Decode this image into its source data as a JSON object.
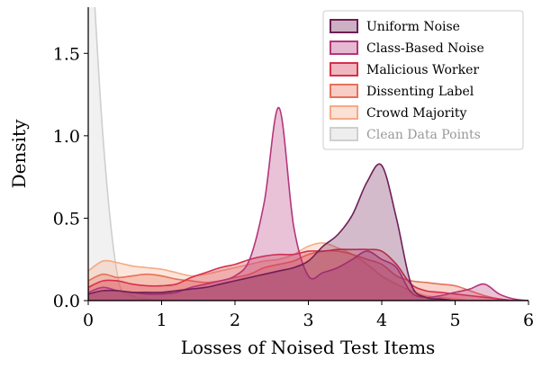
{
  "chart_data": {
    "type": "area",
    "xlabel": "Losses of Noised Test Items",
    "ylabel": "Density",
    "x": [
      0,
      0.2,
      0.4,
      0.6,
      0.8,
      1.0,
      1.2,
      1.4,
      1.6,
      1.8,
      2.0,
      2.2,
      2.4,
      2.6,
      2.8,
      3.0,
      3.2,
      3.4,
      3.6,
      3.8,
      4.0,
      4.2,
      4.4,
      4.6,
      4.8,
      5.0,
      5.2,
      5.4,
      5.6,
      5.8,
      6.0
    ],
    "series": [
      {
        "name": "Uniform Noise",
        "color": "#6e1f57",
        "values": [
          0.04,
          0.06,
          0.06,
          0.05,
          0.05,
          0.05,
          0.06,
          0.07,
          0.08,
          0.1,
          0.12,
          0.14,
          0.16,
          0.18,
          0.2,
          0.24,
          0.33,
          0.4,
          0.52,
          0.72,
          0.82,
          0.5,
          0.1,
          0.02,
          0.01,
          0,
          0,
          0,
          0,
          0,
          0
        ]
      },
      {
        "name": "Class-Based Noise",
        "color": "#b5367a",
        "values": [
          0.05,
          0.08,
          0.06,
          0.05,
          0.04,
          0.04,
          0.05,
          0.08,
          0.1,
          0.12,
          0.15,
          0.25,
          0.6,
          1.17,
          0.45,
          0.15,
          0.17,
          0.2,
          0.25,
          0.3,
          0.25,
          0.2,
          0.05,
          0.02,
          0.03,
          0.05,
          0.07,
          0.1,
          0.04,
          0.01,
          0
        ]
      },
      {
        "name": "Malicious Worker",
        "color": "#d6304a",
        "values": [
          0.08,
          0.12,
          0.12,
          0.1,
          0.09,
          0.09,
          0.1,
          0.14,
          0.17,
          0.2,
          0.22,
          0.25,
          0.27,
          0.28,
          0.28,
          0.3,
          0.3,
          0.31,
          0.31,
          0.31,
          0.3,
          0.22,
          0.1,
          0.06,
          0.05,
          0.04,
          0.03,
          0.02,
          0.01,
          0,
          0
        ]
      },
      {
        "name": "Dissenting Label",
        "color": "#e8705a",
        "values": [
          0.12,
          0.16,
          0.14,
          0.15,
          0.16,
          0.15,
          0.13,
          0.12,
          0.11,
          0.12,
          0.14,
          0.16,
          0.2,
          0.22,
          0.24,
          0.28,
          0.3,
          0.3,
          0.28,
          0.25,
          0.22,
          0.15,
          0.12,
          0.11,
          0.1,
          0.09,
          0.06,
          0.03,
          0.01,
          0,
          0
        ]
      },
      {
        "name": "Crowd Majority",
        "color": "#f4aa85",
        "values": [
          0.18,
          0.24,
          0.23,
          0.21,
          0.2,
          0.19,
          0.17,
          0.15,
          0.16,
          0.18,
          0.2,
          0.22,
          0.24,
          0.25,
          0.28,
          0.33,
          0.35,
          0.32,
          0.28,
          0.22,
          0.15,
          0.1,
          0.06,
          0.03,
          0.02,
          0.01,
          0,
          0,
          0,
          0,
          0
        ]
      },
      {
        "name": "Clean Data Points",
        "color": "#cfcfcf",
        "values": [
          2.5,
          1.0,
          0.15,
          0.03,
          0.01,
          0,
          0,
          0,
          0,
          0,
          0,
          0,
          0,
          0,
          0,
          0,
          0,
          0,
          0,
          0,
          0,
          0,
          0,
          0,
          0,
          0,
          0,
          0,
          0,
          0,
          0
        ]
      }
    ],
    "xlim": [
      0,
      6
    ],
    "xticks": [
      0,
      1,
      2,
      3,
      4,
      5,
      6
    ],
    "ylim": [
      0,
      1.78
    ],
    "yticks": [
      {
        "value": 0,
        "label": "0.0"
      },
      0.5,
      {
        "value": 1,
        "label": "1.0"
      },
      1.5
    ],
    "grid": false,
    "legend": "upper right"
  }
}
